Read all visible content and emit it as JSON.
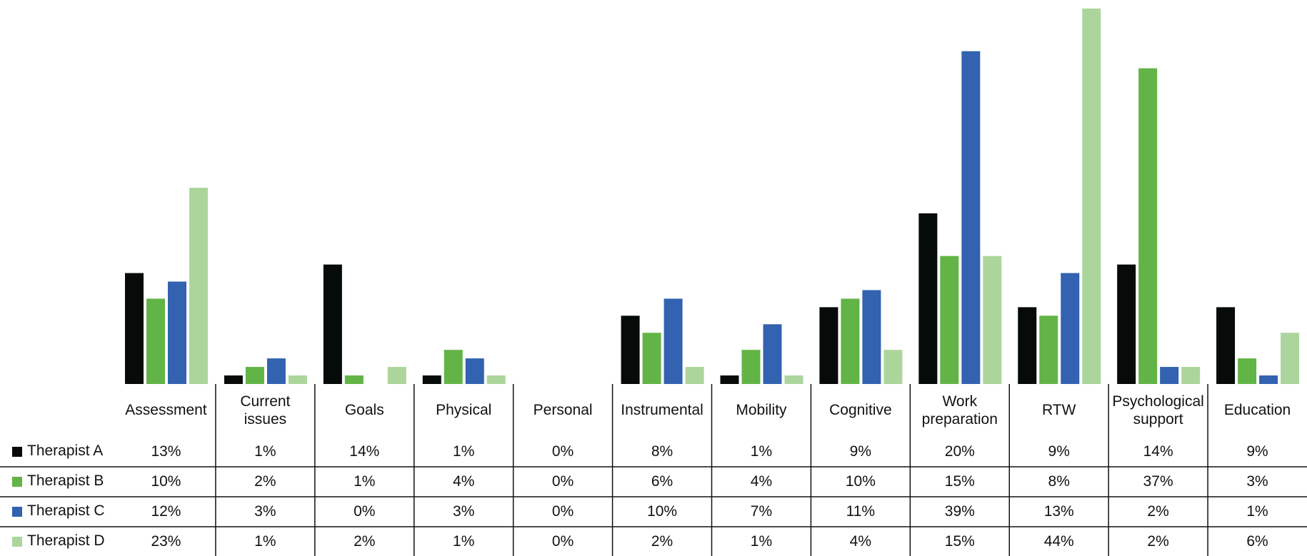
{
  "chart_data": {
    "type": "bar",
    "categories": [
      "Assessment",
      "Current issues",
      "Goals",
      "Physical",
      "Personal",
      "Instrumental",
      "Mobility",
      "Cognitive",
      "Work preparation",
      "RTW",
      "Psychological support",
      "Education"
    ],
    "series": [
      {
        "name": "Therapist A",
        "color": "#060a08",
        "values": [
          13,
          1,
          14,
          1,
          0,
          8,
          1,
          9,
          20,
          9,
          14,
          9
        ],
        "value_labels": [
          "13%",
          "1%",
          "14%",
          "1%",
          "0%",
          "8%",
          "1%",
          "9%",
          "20%",
          "9%",
          "14%",
          "9%"
        ]
      },
      {
        "name": "Therapist B",
        "color": "#62b446",
        "values": [
          10,
          2,
          1,
          4,
          0,
          6,
          4,
          10,
          15,
          8,
          37,
          3
        ],
        "value_labels": [
          "10%",
          "2%",
          "1%",
          "4%",
          "0%",
          "6%",
          "4%",
          "10%",
          "15%",
          "8%",
          "37%",
          "3%"
        ]
      },
      {
        "name": "Therapist C",
        "color": "#3262b0",
        "values": [
          12,
          3,
          0,
          3,
          0,
          10,
          7,
          11,
          39,
          13,
          2,
          1
        ],
        "value_labels": [
          "12%",
          "3%",
          "0%",
          "3%",
          "0%",
          "10%",
          "7%",
          "11%",
          "39%",
          "13%",
          "2%",
          "1%"
        ]
      },
      {
        "name": "Therapist D",
        "color": "#acd59c",
        "values": [
          23,
          1,
          2,
          1,
          0,
          2,
          1,
          4,
          15,
          44,
          2,
          6
        ],
        "value_labels": [
          "23%",
          "1%",
          "2%",
          "1%",
          "0%",
          "2%",
          "1%",
          "4%",
          "15%",
          "44%",
          "2%",
          "6%"
        ]
      }
    ],
    "ylim": [
      0,
      45
    ]
  }
}
